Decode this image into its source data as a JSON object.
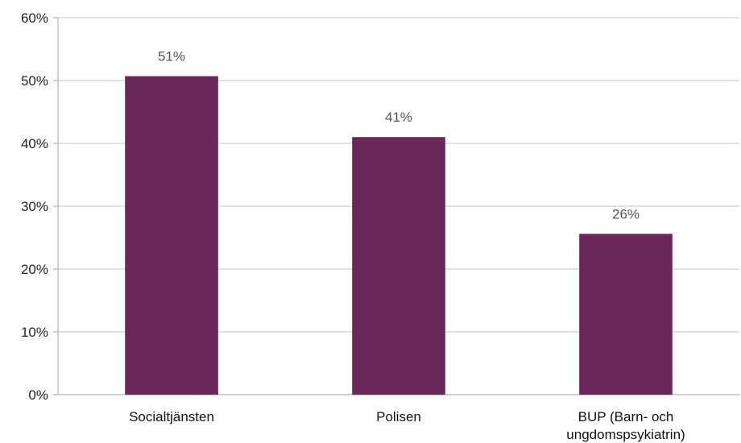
{
  "chart_data": {
    "type": "bar",
    "categories": [
      "Socialtjänsten",
      "Polisen",
      "BUP (Barn- och ungdomspsykiatrin)"
    ],
    "category_lines": [
      [
        "Socialtjänsten"
      ],
      [
        "Polisen"
      ],
      [
        "BUP (Barn- och",
        "ungdomspsykiatrin)"
      ]
    ],
    "values": [
      50.7,
      41.0,
      25.6
    ],
    "data_labels": [
      "51%",
      "41%",
      "26%"
    ],
    "ylim": [
      0,
      60
    ],
    "yticks": [
      0,
      10,
      20,
      30,
      40,
      50,
      60
    ],
    "ytick_labels": [
      "0%",
      "10%",
      "20%",
      "30%",
      "40%",
      "50%",
      "60%"
    ],
    "grid": true,
    "bar_color": "#6a2757",
    "grid_color": "#d9d9d9"
  }
}
